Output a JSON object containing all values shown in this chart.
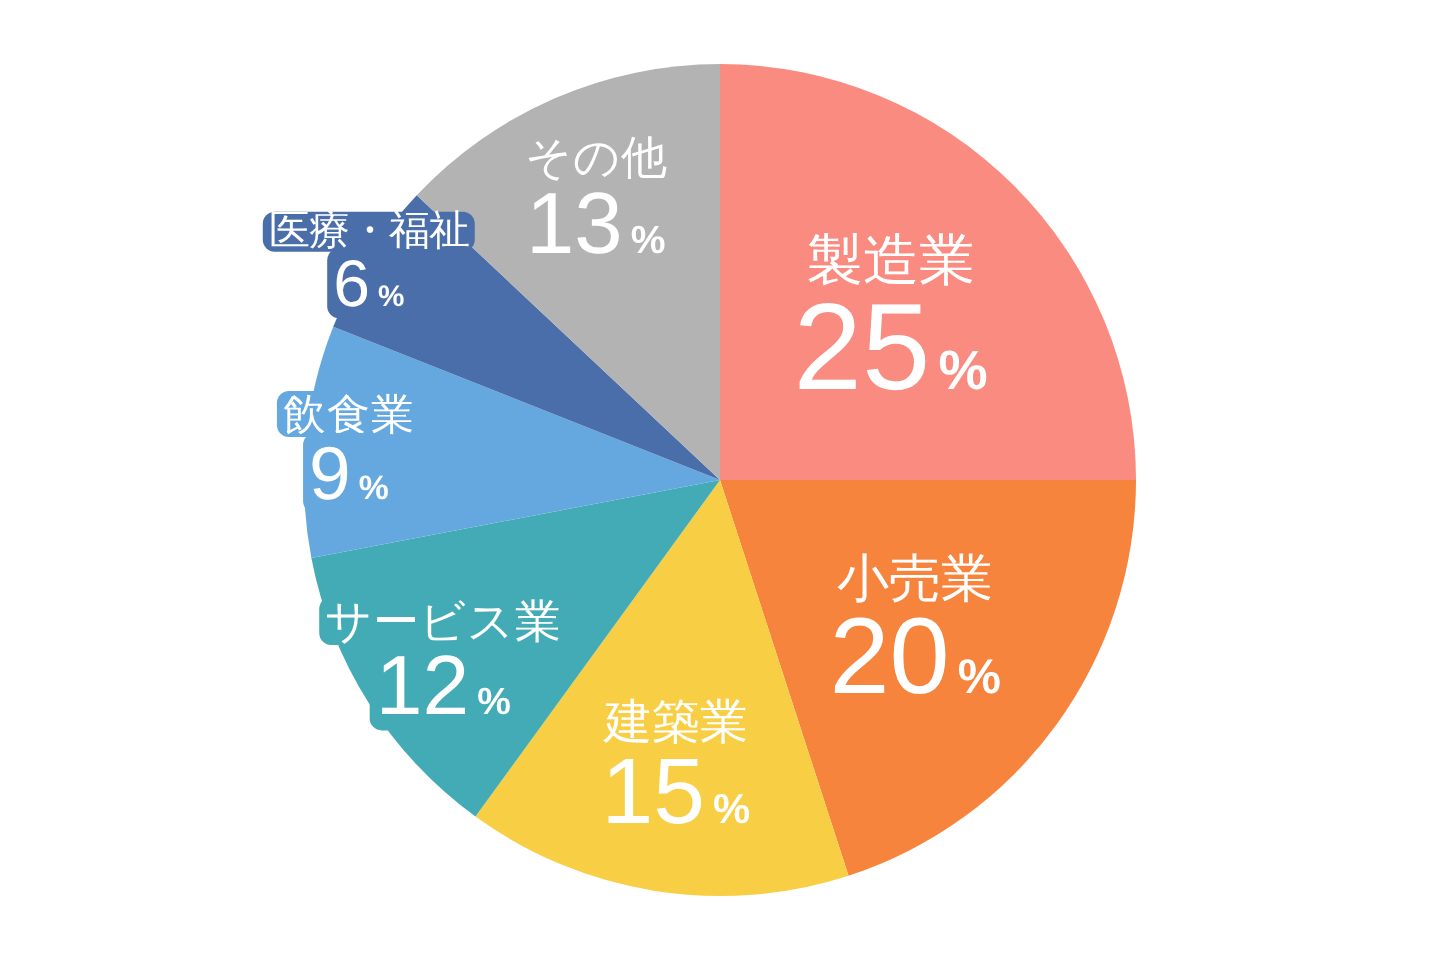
{
  "chart_data": {
    "type": "pie",
    "categories": [
      "製造業",
      "小売業",
      "建築業",
      "サービス業",
      "飲食業",
      "医療・福祉",
      "その他"
    ],
    "values": [
      25,
      20,
      15,
      12,
      9,
      6,
      13
    ],
    "value_labels": [
      "25%",
      "20%",
      "15%",
      "12%",
      "9%",
      "6%",
      "13%"
    ],
    "colors": [
      "#f98b80",
      "#f7843d",
      "#f8ce45",
      "#42abb5",
      "#65a8e0",
      "#4a6ea9",
      "#b3b3b3"
    ]
  }
}
